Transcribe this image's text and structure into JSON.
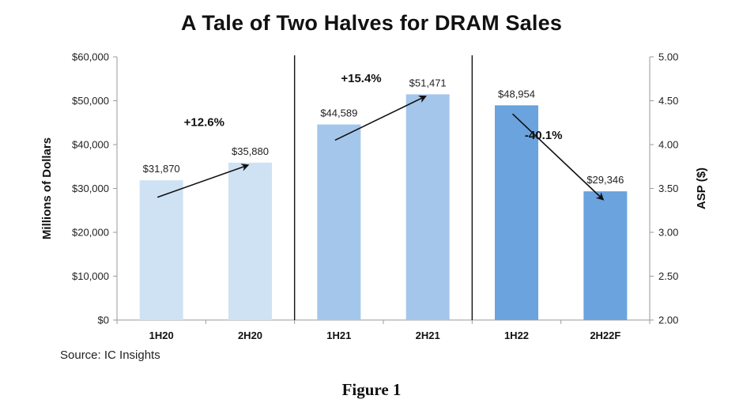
{
  "chart_data": {
    "type": "bar",
    "title": "A Tale of Two Halves for DRAM Sales",
    "categories": [
      "1H20",
      "2H20",
      "1H21",
      "2H21",
      "1H22",
      "2H22F"
    ],
    "values": [
      31870,
      35880,
      44589,
      51471,
      48954,
      29346
    ],
    "value_labels": [
      "$31,870",
      "$35,880",
      "$44,589",
      "$51,471",
      "$48,954",
      "$29,346"
    ],
    "bar_colors": [
      "#cfe2f3",
      "#cfe2f3",
      "#a4c6eb",
      "#a4c6eb",
      "#6aa3dd",
      "#6aa3dd"
    ],
    "ylabel": "Millions of Dollars",
    "ylim": [
      0,
      60000
    ],
    "yticks": [
      0,
      10000,
      20000,
      30000,
      40000,
      50000,
      60000
    ],
    "ytick_labels": [
      "$0",
      "$10,000",
      "$20,000",
      "$30,000",
      "$40,000",
      "$50,000",
      "$60,000"
    ],
    "y2label": "ASP ($)",
    "y2lim": [
      2.0,
      5.0
    ],
    "y2ticks": [
      2.0,
      2.5,
      3.0,
      3.5,
      4.0,
      4.5,
      5.0
    ],
    "y2tick_labels": [
      "2.00",
      "2.50",
      "3.00",
      "3.50",
      "4.00",
      "4.50",
      "5.00"
    ],
    "annotations": [
      {
        "text": "+12.6%",
        "from": "1H20",
        "to": "2H20"
      },
      {
        "text": "+15.4%",
        "from": "1H21",
        "to": "2H21"
      },
      {
        "text": "-40.1%",
        "from": "1H22",
        "to": "2H22F"
      }
    ],
    "group_dividers_after": [
      "2H20",
      "2H21"
    ],
    "grid": false,
    "legend": "none"
  },
  "source_note": "Source:  IC Insights",
  "figure_caption": "Figure 1"
}
